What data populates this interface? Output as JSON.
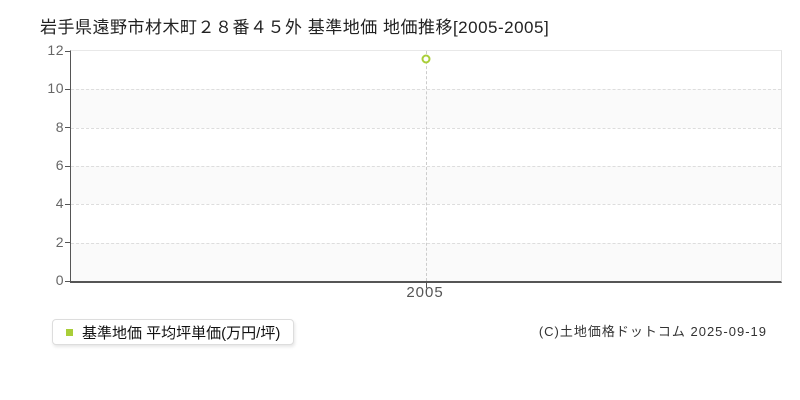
{
  "title": "岩手県遠野市材木町２８番４５外 基準地価 地価推移[2005-2005]",
  "legend": {
    "label": "基準地価 平均坪単価(万円/坪)"
  },
  "footer": {
    "copyright": "(C)土地価格ドットコム 2025-09-19"
  },
  "colors": {
    "marker": "#a9ce38",
    "legend_marker": "#a9ce38",
    "gridline": "#dddddd",
    "axis": "#555555",
    "ref_line": "#cccccc",
    "band_alt": "#fafafa",
    "tick_label": "#666666"
  },
  "chart_data": {
    "type": "line",
    "title": "岩手県遠野市材木町２８番４５外 基準地価 地価推移[2005-2005]",
    "x": [
      "2005"
    ],
    "series": [
      {
        "name": "基準地価 平均坪単価(万円/坪)",
        "values": [
          11.6
        ]
      }
    ],
    "xlabel": "",
    "ylabel": "",
    "ylim": [
      0,
      12
    ],
    "yticks": [
      0,
      2,
      4,
      6,
      8,
      10,
      12
    ],
    "grid": "horizontal-dashed",
    "legend_position": "bottom-left",
    "marker_style": "open-circle"
  }
}
